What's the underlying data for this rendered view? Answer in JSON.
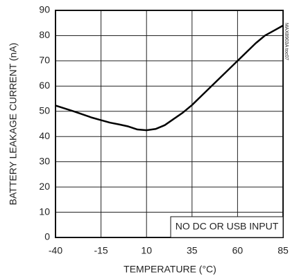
{
  "chart_data": {
    "type": "line",
    "x_label": "TEMPERATURE (°C)",
    "y_label": "BATTERY LEAKAGE CURRENT (nA)",
    "annotation": "NO DC OR USB INPUT",
    "figure_id": "MAX8903A toc07",
    "x": [
      -40,
      -30,
      -20,
      -15,
      -10,
      -5,
      0,
      5,
      10,
      15,
      20,
      25,
      30,
      35,
      40,
      45,
      50,
      55,
      60,
      65,
      70,
      75,
      80,
      85
    ],
    "series": [
      {
        "name": "NO DC OR USB INPUT",
        "color": "#000000",
        "values": [
          52.3,
          50,
          47.5,
          46.5,
          45.5,
          44.8,
          44,
          42.8,
          42.5,
          43,
          44.5,
          47,
          49.5,
          52.5,
          56,
          59.5,
          63,
          66.5,
          70,
          73.5,
          77,
          80,
          82,
          84
        ]
      }
    ],
    "xlim": [
      -40,
      85
    ],
    "xticks": [
      -40,
      -15,
      10,
      35,
      60,
      85
    ],
    "ylim": [
      0,
      90
    ],
    "yticks": [
      0,
      10,
      20,
      30,
      40,
      50,
      60,
      70,
      80,
      90
    ],
    "grid": true
  }
}
